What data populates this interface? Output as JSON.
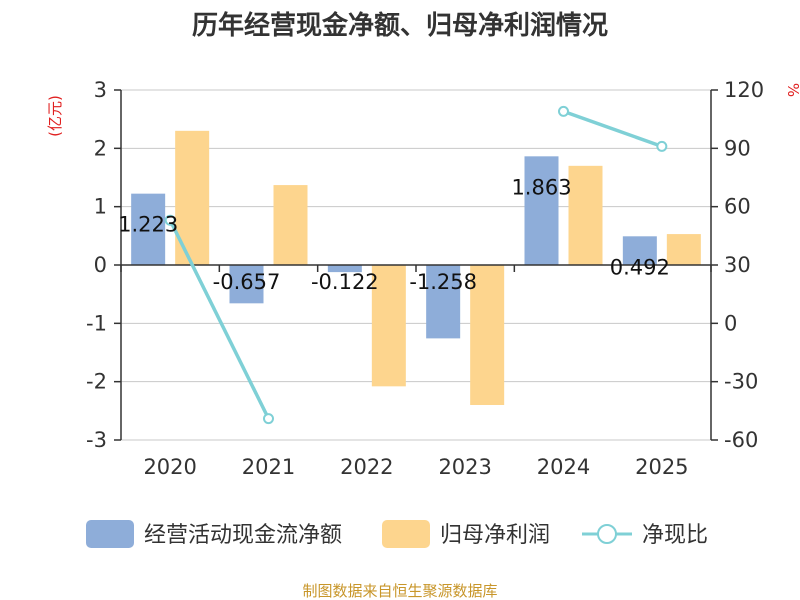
{
  "title": "历年经营现金净额、归母净利润情况",
  "source": "制图数据来自恒生聚源数据库",
  "chart_data": {
    "type": "bar",
    "categories": [
      "2020",
      "2021",
      "2022",
      "2023",
      "2024",
      "2025"
    ],
    "series": [
      {
        "name": "经营活动现金流净额",
        "type": "bar",
        "axis": "left",
        "color": "#8eadd9",
        "values": [
          1.223,
          -0.657,
          -0.122,
          -1.258,
          1.863,
          0.492
        ],
        "labels": [
          "1.223",
          "-0.657",
          "-0.122",
          "-1.258",
          "1.863",
          "0.492"
        ]
      },
      {
        "name": "归母净利润",
        "type": "bar",
        "axis": "left",
        "color": "#fdd58e",
        "values": [
          2.3,
          1.37,
          -2.08,
          -2.4,
          1.7,
          0.53
        ]
      },
      {
        "name": "净现比",
        "type": "line",
        "axis": "right",
        "color": "#7fd0d6",
        "values": [
          53,
          -49,
          null,
          null,
          109,
          91
        ]
      }
    ],
    "y_left": {
      "unit": "(亿元)",
      "ylim": [
        -3,
        3
      ],
      "ticks": [
        -3,
        -2,
        -1,
        0,
        1,
        2,
        3
      ]
    },
    "y_right": {
      "unit": "%",
      "ylim": [
        -60,
        120
      ],
      "ticks": [
        -60,
        -30,
        0,
        30,
        60,
        90,
        120
      ]
    },
    "grid": true,
    "legend_position": "bottom"
  }
}
